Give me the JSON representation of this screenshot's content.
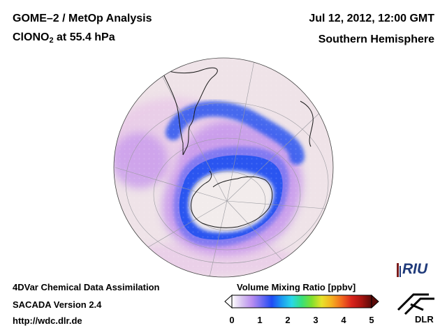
{
  "header": {
    "title_line1": "GOME–2 / MetOp Analysis",
    "species_prefix": "ClONO",
    "species_subscript": "2",
    "species_suffix": " at 55.4 hPa",
    "datetime": "Jul 12, 2012, 12:00 GMT",
    "region": "Southern Hemisphere"
  },
  "footer": {
    "line1": "4DVar Chemical Data Assimilation",
    "line2": "SACADA Version 2.4",
    "line3": "http://wdc.dlr.de"
  },
  "colorbar": {
    "title": "Volume Mixing Ratio [ppbv]",
    "ticks": [
      "0",
      "1",
      "2",
      "3",
      "4",
      "5"
    ],
    "min": 0,
    "max": 5,
    "colors": [
      "#ffffff",
      "#d8c4f0",
      "#b98ef0",
      "#6f6cf2",
      "#1f4bf5",
      "#1b9af2",
      "#29d8e8",
      "#38e07a",
      "#7fe02e",
      "#e8e22a",
      "#f5b020",
      "#f26a1e",
      "#d9241c",
      "#a81410",
      "#5a0a08"
    ]
  },
  "logos": {
    "riu": "RIU",
    "dlr": "DLR"
  },
  "map": {
    "projection": "orthographic, south polar view",
    "field_colors": {
      "background": "#efe3e8",
      "low": "#e8c8e8",
      "mid": "#c89aec",
      "belt_outer": "#7f78f2",
      "belt_core": "#2a55f0",
      "vortex_interior": "#f2ecec"
    }
  }
}
